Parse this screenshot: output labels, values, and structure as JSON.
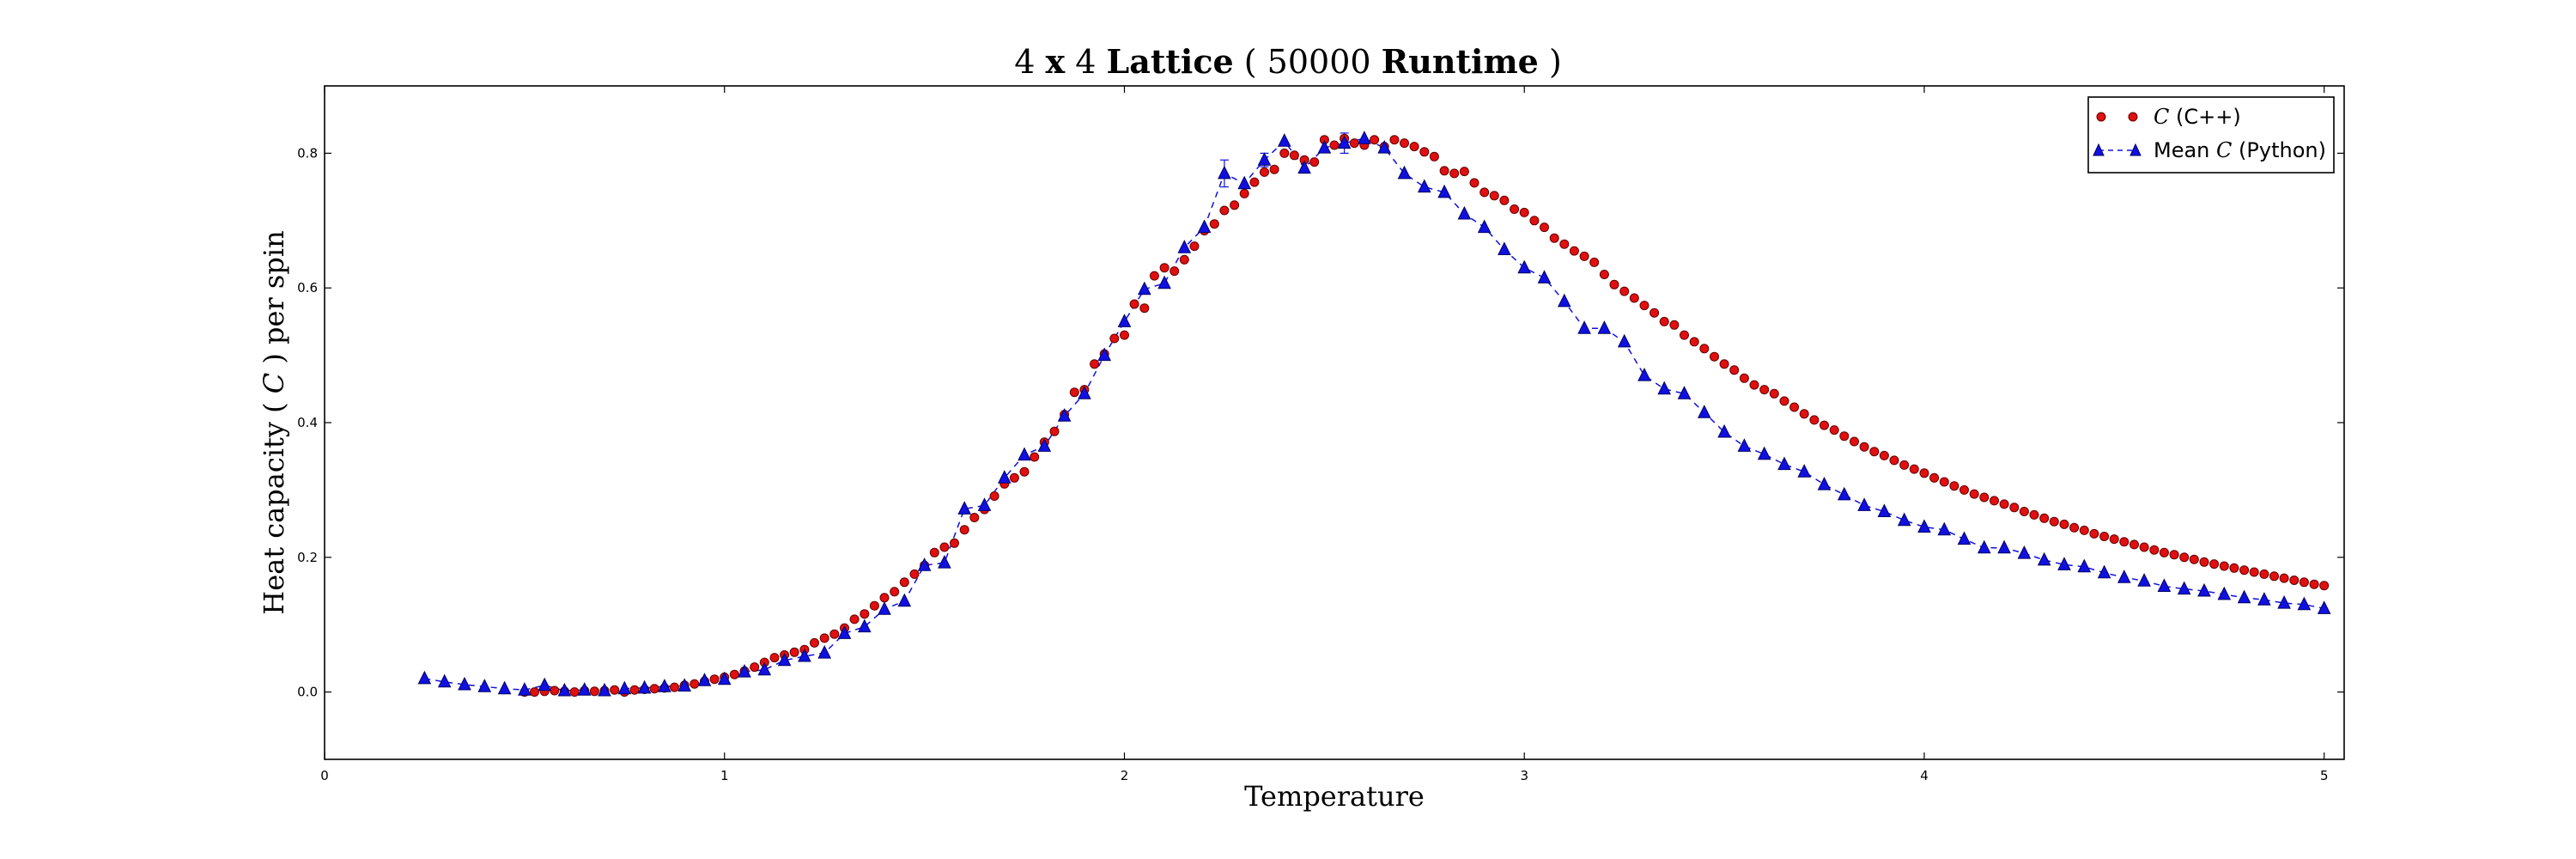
{
  "chart_data": {
    "type": "scatter",
    "title": {
      "part1": "4 ",
      "part2_bold": "x",
      "part3": " 4 ",
      "part4_bold": "Lattice",
      "part5": " ( 50000 ",
      "part6_bold": "Runtime",
      "part7": " )"
    },
    "xlabel": "Temperature",
    "ylabel": {
      "before": "Heat capacity ( ",
      "symbol": "C",
      "after": " ) per spin"
    },
    "xlim": [
      0,
      5.05
    ],
    "ylim": [
      -0.1,
      0.9
    ],
    "x_ticks": [
      {
        "value": 0,
        "label": "0"
      },
      {
        "value": 1,
        "label": "1"
      },
      {
        "value": 2,
        "label": "2"
      },
      {
        "value": 3,
        "label": "3"
      },
      {
        "value": 4,
        "label": "4"
      },
      {
        "value": 5,
        "label": "5"
      }
    ],
    "y_ticks": [
      {
        "value": 0.0,
        "label": "0.0"
      },
      {
        "value": 0.2,
        "label": "0.2"
      },
      {
        "value": 0.4,
        "label": "0.4"
      },
      {
        "value": 0.6,
        "label": "0.6"
      },
      {
        "value": 0.8,
        "label": "0.8"
      }
    ],
    "grid": false,
    "legend_position": "top-right",
    "series": [
      {
        "name_symbol": "C",
        "name_rest": " (C++)",
        "marker": "circle",
        "color": "#e01010",
        "edge_color": "#660000",
        "points": [
          [
            0.5,
            0.0
          ],
          [
            0.525,
            0.0
          ],
          [
            0.55,
            0.001
          ],
          [
            0.575,
            0.002
          ],
          [
            0.6,
            0.001
          ],
          [
            0.625,
            0.0
          ],
          [
            0.65,
            0.002
          ],
          [
            0.675,
            0.001
          ],
          [
            0.7,
            0.002
          ],
          [
            0.725,
            0.003
          ],
          [
            0.75,
            0.0
          ],
          [
            0.775,
            0.003
          ],
          [
            0.8,
            0.004
          ],
          [
            0.825,
            0.005
          ],
          [
            0.85,
            0.006
          ],
          [
            0.875,
            0.007
          ],
          [
            0.9,
            0.01
          ],
          [
            0.925,
            0.012
          ],
          [
            0.95,
            0.016
          ],
          [
            0.975,
            0.019
          ],
          [
            1.0,
            0.022
          ],
          [
            1.025,
            0.026
          ],
          [
            1.05,
            0.031
          ],
          [
            1.075,
            0.037
          ],
          [
            1.1,
            0.044
          ],
          [
            1.125,
            0.051
          ],
          [
            1.15,
            0.055
          ],
          [
            1.175,
            0.059
          ],
          [
            1.2,
            0.063
          ],
          [
            1.225,
            0.073
          ],
          [
            1.25,
            0.08
          ],
          [
            1.275,
            0.086
          ],
          [
            1.3,
            0.095
          ],
          [
            1.325,
            0.108
          ],
          [
            1.35,
            0.116
          ],
          [
            1.375,
            0.128
          ],
          [
            1.4,
            0.14
          ],
          [
            1.425,
            0.149
          ],
          [
            1.45,
            0.163
          ],
          [
            1.475,
            0.175
          ],
          [
            1.5,
            0.188
          ],
          [
            1.525,
            0.207
          ],
          [
            1.55,
            0.215
          ],
          [
            1.575,
            0.221
          ],
          [
            1.6,
            0.241
          ],
          [
            1.625,
            0.259
          ],
          [
            1.65,
            0.271
          ],
          [
            1.675,
            0.291
          ],
          [
            1.7,
            0.309
          ],
          [
            1.725,
            0.318
          ],
          [
            1.75,
            0.327
          ],
          [
            1.775,
            0.349
          ],
          [
            1.8,
            0.371
          ],
          [
            1.825,
            0.387
          ],
          [
            1.85,
            0.412
          ],
          [
            1.875,
            0.445
          ],
          [
            1.9,
            0.449
          ],
          [
            1.925,
            0.487
          ],
          [
            1.95,
            0.502
          ],
          [
            1.975,
            0.525
          ],
          [
            2.0,
            0.53
          ],
          [
            2.025,
            0.576
          ],
          [
            2.05,
            0.57
          ],
          [
            2.075,
            0.618
          ],
          [
            2.1,
            0.63
          ],
          [
            2.125,
            0.625
          ],
          [
            2.15,
            0.642
          ],
          [
            2.175,
            0.662
          ],
          [
            2.2,
            0.685
          ],
          [
            2.225,
            0.695
          ],
          [
            2.25,
            0.715
          ],
          [
            2.275,
            0.723
          ],
          [
            2.3,
            0.74
          ],
          [
            2.325,
            0.757
          ],
          [
            2.35,
            0.772
          ],
          [
            2.375,
            0.776
          ],
          [
            2.4,
            0.8
          ],
          [
            2.425,
            0.797
          ],
          [
            2.45,
            0.79
          ],
          [
            2.475,
            0.787
          ],
          [
            2.5,
            0.82
          ],
          [
            2.525,
            0.812
          ],
          [
            2.55,
            0.822
          ],
          [
            2.575,
            0.815
          ],
          [
            2.6,
            0.812
          ],
          [
            2.625,
            0.82
          ],
          [
            2.65,
            0.81
          ],
          [
            2.675,
            0.82
          ],
          [
            2.7,
            0.815
          ],
          [
            2.725,
            0.81
          ],
          [
            2.75,
            0.802
          ],
          [
            2.775,
            0.795
          ],
          [
            2.8,
            0.774
          ],
          [
            2.825,
            0.77
          ],
          [
            2.85,
            0.773
          ],
          [
            2.875,
            0.756
          ],
          [
            2.9,
            0.742
          ],
          [
            2.925,
            0.737
          ],
          [
            2.95,
            0.73
          ],
          [
            2.975,
            0.717
          ],
          [
            3.0,
            0.712
          ],
          [
            3.025,
            0.7
          ],
          [
            3.05,
            0.69
          ],
          [
            3.075,
            0.674
          ],
          [
            3.1,
            0.665
          ],
          [
            3.125,
            0.655
          ],
          [
            3.15,
            0.647
          ],
          [
            3.175,
            0.638
          ],
          [
            3.2,
            0.62
          ],
          [
            3.225,
            0.605
          ],
          [
            3.25,
            0.595
          ],
          [
            3.275,
            0.585
          ],
          [
            3.3,
            0.574
          ],
          [
            3.325,
            0.563
          ],
          [
            3.35,
            0.55
          ],
          [
            3.375,
            0.545
          ],
          [
            3.4,
            0.53
          ],
          [
            3.425,
            0.52
          ],
          [
            3.45,
            0.51
          ],
          [
            3.475,
            0.498
          ],
          [
            3.5,
            0.487
          ],
          [
            3.525,
            0.478
          ],
          [
            3.55,
            0.466
          ],
          [
            3.575,
            0.456
          ],
          [
            3.6,
            0.449
          ],
          [
            3.625,
            0.443
          ],
          [
            3.65,
            0.432
          ],
          [
            3.675,
            0.423
          ],
          [
            3.7,
            0.413
          ],
          [
            3.725,
            0.404
          ],
          [
            3.75,
            0.396
          ],
          [
            3.775,
            0.389
          ],
          [
            3.8,
            0.38
          ],
          [
            3.825,
            0.372
          ],
          [
            3.85,
            0.364
          ],
          [
            3.875,
            0.357
          ],
          [
            3.9,
            0.351
          ],
          [
            3.925,
            0.344
          ],
          [
            3.95,
            0.337
          ],
          [
            3.975,
            0.331
          ],
          [
            4.0,
            0.325
          ],
          [
            4.025,
            0.318
          ],
          [
            4.05,
            0.312
          ],
          [
            4.075,
            0.306
          ],
          [
            4.1,
            0.3
          ],
          [
            4.125,
            0.294
          ],
          [
            4.15,
            0.289
          ],
          [
            4.175,
            0.284
          ],
          [
            4.2,
            0.279
          ],
          [
            4.225,
            0.274
          ],
          [
            4.25,
            0.268
          ],
          [
            4.275,
            0.263
          ],
          [
            4.3,
            0.258
          ],
          [
            4.325,
            0.253
          ],
          [
            4.35,
            0.249
          ],
          [
            4.375,
            0.244
          ],
          [
            4.4,
            0.24
          ],
          [
            4.425,
            0.235
          ],
          [
            4.45,
            0.231
          ],
          [
            4.475,
            0.227
          ],
          [
            4.5,
            0.223
          ],
          [
            4.525,
            0.219
          ],
          [
            4.55,
            0.215
          ],
          [
            4.575,
            0.211
          ],
          [
            4.6,
            0.207
          ],
          [
            4.625,
            0.204
          ],
          [
            4.65,
            0.2
          ],
          [
            4.675,
            0.197
          ],
          [
            4.7,
            0.193
          ],
          [
            4.725,
            0.19
          ],
          [
            4.75,
            0.187
          ],
          [
            4.775,
            0.184
          ],
          [
            4.8,
            0.181
          ],
          [
            4.825,
            0.178
          ],
          [
            4.85,
            0.175
          ],
          [
            4.875,
            0.172
          ],
          [
            4.9,
            0.169
          ],
          [
            4.925,
            0.166
          ],
          [
            4.95,
            0.163
          ],
          [
            4.975,
            0.16
          ],
          [
            5.0,
            0.158
          ]
        ]
      },
      {
        "name_prefix": "Mean ",
        "name_symbol": "C",
        "name_rest": " (Python)",
        "marker": "triangle",
        "color": "#1010e0",
        "edge_color": "#000066",
        "line_style": "dashed",
        "points": [
          [
            0.25,
            0.02
          ],
          [
            0.3,
            0.015
          ],
          [
            0.35,
            0.011
          ],
          [
            0.4,
            0.008
          ],
          [
            0.45,
            0.005
          ],
          [
            0.5,
            0.003
          ],
          [
            0.55,
            0.01
          ],
          [
            0.6,
            0.002
          ],
          [
            0.65,
            0.003
          ],
          [
            0.7,
            0.002
          ],
          [
            0.75,
            0.005
          ],
          [
            0.8,
            0.006
          ],
          [
            0.85,
            0.008
          ],
          [
            0.9,
            0.009
          ],
          [
            0.95,
            0.017
          ],
          [
            1.0,
            0.019
          ],
          [
            1.05,
            0.03
          ],
          [
            1.1,
            0.033
          ],
          [
            1.15,
            0.047
          ],
          [
            1.2,
            0.053
          ],
          [
            1.25,
            0.058
          ],
          [
            1.3,
            0.087
          ],
          [
            1.35,
            0.097
          ],
          [
            1.4,
            0.123
          ],
          [
            1.45,
            0.135
          ],
          [
            1.5,
            0.188
          ],
          [
            1.55,
            0.192
          ],
          [
            1.6,
            0.272
          ],
          [
            1.65,
            0.277
          ],
          [
            1.7,
            0.318
          ],
          [
            1.75,
            0.352
          ],
          [
            1.8,
            0.365
          ],
          [
            1.85,
            0.41
          ],
          [
            1.9,
            0.443
          ],
          [
            1.95,
            0.5
          ],
          [
            2.0,
            0.55
          ],
          [
            2.05,
            0.598
          ],
          [
            2.1,
            0.607
          ],
          [
            2.15,
            0.66
          ],
          [
            2.2,
            0.69
          ],
          [
            2.25,
            0.77
          ],
          [
            2.3,
            0.755
          ],
          [
            2.35,
            0.79
          ],
          [
            2.4,
            0.818
          ],
          [
            2.45,
            0.778
          ],
          [
            2.5,
            0.808
          ],
          [
            2.55,
            0.815
          ],
          [
            2.6,
            0.822
          ],
          [
            2.65,
            0.808
          ],
          [
            2.7,
            0.77
          ],
          [
            2.75,
            0.75
          ],
          [
            2.8,
            0.742
          ],
          [
            2.85,
            0.71
          ],
          [
            2.9,
            0.69
          ],
          [
            2.95,
            0.657
          ],
          [
            3.0,
            0.63
          ],
          [
            3.05,
            0.615
          ],
          [
            3.1,
            0.58
          ],
          [
            3.15,
            0.54
          ],
          [
            3.2,
            0.54
          ],
          [
            3.25,
            0.52
          ],
          [
            3.3,
            0.47
          ],
          [
            3.35,
            0.45
          ],
          [
            3.4,
            0.443
          ],
          [
            3.45,
            0.415
          ],
          [
            3.5,
            0.386
          ],
          [
            3.55,
            0.365
          ],
          [
            3.6,
            0.353
          ],
          [
            3.65,
            0.338
          ],
          [
            3.7,
            0.327
          ],
          [
            3.75,
            0.308
          ],
          [
            3.8,
            0.293
          ],
          [
            3.85,
            0.277
          ],
          [
            3.9,
            0.268
          ],
          [
            3.95,
            0.255
          ],
          [
            4.0,
            0.245
          ],
          [
            4.05,
            0.241
          ],
          [
            4.1,
            0.227
          ],
          [
            4.15,
            0.214
          ],
          [
            4.2,
            0.214
          ],
          [
            4.25,
            0.206
          ],
          [
            4.3,
            0.196
          ],
          [
            4.35,
            0.189
          ],
          [
            4.4,
            0.186
          ],
          [
            4.45,
            0.177
          ],
          [
            4.5,
            0.17
          ],
          [
            4.55,
            0.165
          ],
          [
            4.6,
            0.157
          ],
          [
            4.65,
            0.153
          ],
          [
            4.7,
            0.15
          ],
          [
            4.75,
            0.145
          ],
          [
            4.8,
            0.14
          ],
          [
            4.85,
            0.137
          ],
          [
            4.9,
            0.132
          ],
          [
            4.95,
            0.13
          ],
          [
            5.0,
            0.124
          ]
        ],
        "error_bars": [
          {
            "x": 2.25,
            "lo": 0.75,
            "hi": 0.79
          },
          {
            "x": 2.35,
            "lo": 0.78,
            "hi": 0.8
          },
          {
            "x": 2.55,
            "lo": 0.8,
            "hi": 0.83
          }
        ]
      }
    ]
  }
}
